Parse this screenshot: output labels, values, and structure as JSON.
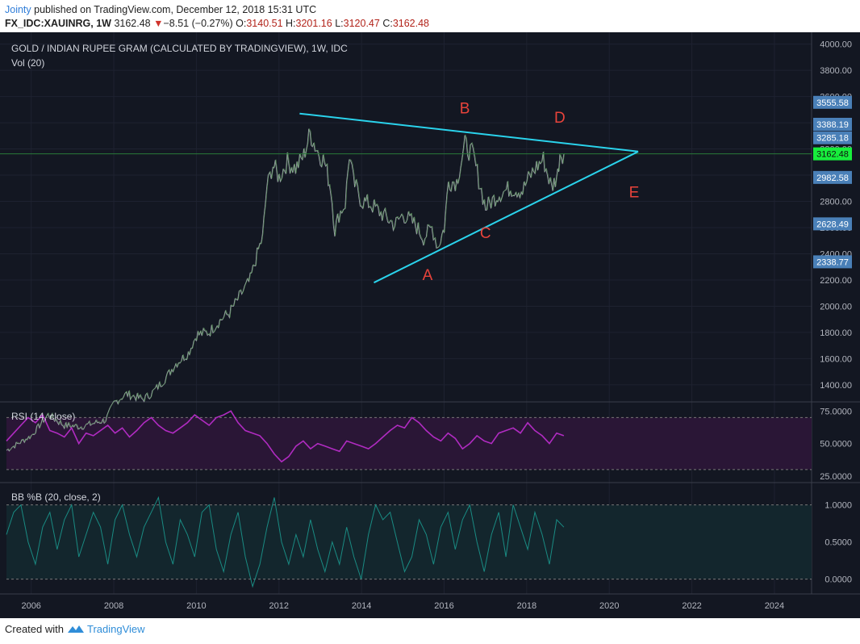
{
  "header": {
    "user": "Jointy",
    "published_text": " published on TradingView.com, December 12, 2018 15:31 UTC",
    "symbol": "FX_IDC:XAUINRG",
    "interval": ", 1W",
    "last": "3162.48",
    "change_arrow": "▼",
    "change": "−8.51 (−0.27%)",
    "o_label": "O:",
    "o_val": "3140.51",
    "h_label": "H:",
    "h_val": "3201.16",
    "l_label": "L:",
    "l_val": "3120.47",
    "c_label": "C:",
    "c_val": "3162.48"
  },
  "footer": {
    "created_with": "Created with",
    "brand": "TradingView"
  },
  "chart_data": {
    "type": "line",
    "title": "GOLD / INDIAN RUPEE GRAM (CALCULATED BY TRADINGVIEW), 1W, IDC",
    "volume_label": "Vol (20)",
    "colors": {
      "background": "#131722",
      "price_up": "#5fa85c",
      "price_down": "#b2b5be",
      "trendline": "#2ad3ec",
      "annotation": "#e8433b",
      "rsi": "#b02bc1",
      "bbpb": "#1a8b83",
      "last_price_tag": "#17ef3c",
      "axis_tag": "#4a80b8"
    },
    "x_axis": {
      "ticks": [
        "2006",
        "2008",
        "2010",
        "2012",
        "2014",
        "2016",
        "2018",
        "2020",
        "2022",
        "2024"
      ],
      "range": [
        2005.4,
        2024.9
      ]
    },
    "price_axis": {
      "ticks": [
        "1400.00",
        "1600.00",
        "1800.00",
        "2000.00",
        "2200.00",
        "2400.00",
        "2600.00",
        "2800.00",
        "3000.00",
        "3200.00",
        "3400.00",
        "3600.00",
        "3800.00",
        "4000.00"
      ],
      "range": [
        1270,
        4090
      ]
    },
    "price_tags": [
      {
        "value": 3555.58,
        "label": "3555.58"
      },
      {
        "value": 3388.19,
        "label": "3388.19"
      },
      {
        "value": 3285.18,
        "label": "3285.18"
      },
      {
        "value": 3162.48,
        "label": "3162.48",
        "last": true
      },
      {
        "value": 2982.58,
        "label": "2982.58"
      },
      {
        "value": 2628.49,
        "label": "2628.49"
      },
      {
        "value": 2338.77,
        "label": "2338.77"
      }
    ],
    "series": [
      {
        "name": "",
        "points": [
          [
            2005.4,
            900
          ],
          [
            2006.0,
            1010
          ],
          [
            2006.4,
            1170
          ],
          [
            2006.8,
            1090
          ],
          [
            2007.2,
            1080
          ],
          [
            2007.8,
            1130
          ],
          [
            2008.0,
            1260
          ],
          [
            2008.3,
            1330
          ],
          [
            2008.7,
            1290
          ],
          [
            2008.9,
            1330
          ],
          [
            2009.2,
            1430
          ],
          [
            2009.5,
            1560
          ],
          [
            2009.8,
            1640
          ],
          [
            2010.0,
            1780
          ],
          [
            2010.3,
            1800
          ],
          [
            2010.6,
            1900
          ],
          [
            2010.8,
            1950
          ],
          [
            2011.0,
            2050
          ],
          [
            2011.3,
            2200
          ],
          [
            2011.5,
            2430
          ],
          [
            2011.6,
            2520
          ],
          [
            2011.7,
            2900
          ],
          [
            2011.85,
            3080
          ],
          [
            2012.0,
            2980
          ],
          [
            2012.2,
            3100
          ],
          [
            2012.4,
            3050
          ],
          [
            2012.6,
            3150
          ],
          [
            2012.75,
            3320
          ],
          [
            2012.9,
            3200
          ],
          [
            2013.1,
            3100
          ],
          [
            2013.25,
            2900
          ],
          [
            2013.35,
            2580
          ],
          [
            2013.45,
            2700
          ],
          [
            2013.6,
            2780
          ],
          [
            2013.7,
            3160
          ],
          [
            2013.8,
            2950
          ],
          [
            2014.0,
            2800
          ],
          [
            2014.2,
            2780
          ],
          [
            2014.5,
            2700
          ],
          [
            2014.8,
            2620
          ],
          [
            2015.0,
            2700
          ],
          [
            2015.3,
            2620
          ],
          [
            2015.5,
            2520
          ],
          [
            2015.7,
            2600
          ],
          [
            2015.85,
            2450
          ],
          [
            2016.0,
            2600
          ],
          [
            2016.1,
            2950
          ],
          [
            2016.3,
            2950
          ],
          [
            2016.5,
            3230
          ],
          [
            2016.7,
            3150
          ],
          [
            2016.9,
            2880
          ],
          [
            2017.0,
            2750
          ],
          [
            2017.3,
            2850
          ],
          [
            2017.6,
            2900
          ],
          [
            2017.9,
            2880
          ],
          [
            2018.0,
            2950
          ],
          [
            2018.2,
            3050
          ],
          [
            2018.4,
            3120
          ],
          [
            2018.6,
            2900
          ],
          [
            2018.75,
            3010
          ],
          [
            2018.8,
            3170
          ],
          [
            2018.9,
            3162
          ]
        ]
      }
    ],
    "trendlines": [
      {
        "from": [
          2012.5,
          3470
        ],
        "to": [
          2020.7,
          3180
        ]
      },
      {
        "from": [
          2014.3,
          2180
        ],
        "to": [
          2020.7,
          3180
        ]
      }
    ],
    "annotations": [
      {
        "text": "A",
        "x": 2015.6,
        "y": 2200
      },
      {
        "text": "B",
        "x": 2016.5,
        "y": 3470
      },
      {
        "text": "C",
        "x": 2017.0,
        "y": 2520
      },
      {
        "text": "D",
        "x": 2018.8,
        "y": 3400
      },
      {
        "text": "E",
        "x": 2020.6,
        "y": 2830
      }
    ],
    "rsi": {
      "label": "RSI (14, close)",
      "ticks": [
        "25.0000",
        "50.0000",
        "75.0000"
      ],
      "range": [
        20,
        82
      ],
      "bands": [
        30,
        70
      ],
      "values": [
        52,
        58,
        64,
        70,
        66,
        72,
        60,
        58,
        55,
        62,
        50,
        58,
        56,
        60,
        64,
        58,
        62,
        55,
        60,
        66,
        70,
        64,
        60,
        58,
        62,
        66,
        72,
        68,
        64,
        70,
        72,
        75,
        66,
        60,
        58,
        56,
        50,
        42,
        36,
        40,
        48,
        52,
        46,
        50,
        48,
        46,
        44,
        52,
        50,
        48,
        46,
        50,
        55,
        60,
        64,
        62,
        70,
        66,
        60,
        55,
        52,
        58,
        54,
        46,
        50,
        56,
        52,
        50,
        58,
        60,
        62,
        58,
        66,
        60,
        56,
        50,
        58,
        56
      ]
    },
    "bbpb": {
      "label": "BB %B (20, close, 2)",
      "ticks": [
        "0.0000",
        "0.5000",
        "1.0000"
      ],
      "range": [
        -0.2,
        1.3
      ],
      "values": [
        0.6,
        0.9,
        1.0,
        0.5,
        0.2,
        0.7,
        0.9,
        0.4,
        0.8,
        1.0,
        0.3,
        0.6,
        0.9,
        0.7,
        0.2,
        0.8,
        1.0,
        0.6,
        0.3,
        0.7,
        0.9,
        1.1,
        0.5,
        0.2,
        0.8,
        0.6,
        0.3,
        0.9,
        1.0,
        0.4,
        0.1,
        0.6,
        0.9,
        0.3,
        -0.1,
        0.2,
        0.7,
        1.1,
        0.5,
        0.2,
        0.6,
        0.3,
        0.8,
        0.4,
        0.1,
        0.5,
        0.2,
        0.7,
        0.3,
        0.0,
        0.6,
        1.0,
        0.8,
        0.9,
        0.5,
        0.1,
        0.3,
        0.8,
        0.6,
        0.2,
        0.7,
        0.9,
        0.4,
        0.8,
        1.0,
        0.5,
        0.1,
        0.6,
        0.9,
        0.3,
        1.0,
        0.7,
        0.4,
        0.9,
        0.6,
        0.2,
        0.8,
        0.7
      ]
    }
  }
}
